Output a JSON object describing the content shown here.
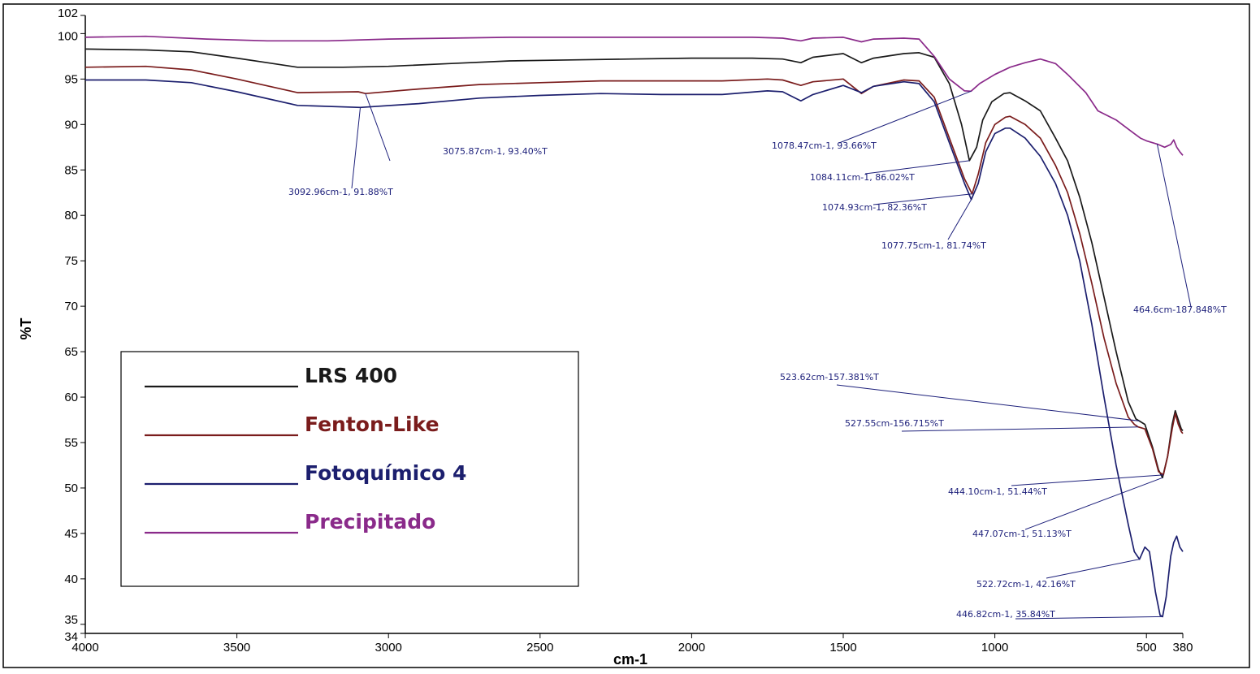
{
  "chart_data": {
    "type": "line",
    "xlabel": "cm-1",
    "ylabel": "%T",
    "xlim": [
      4000,
      380
    ],
    "ylim": [
      34,
      102
    ],
    "x_ticks": [
      4000,
      3500,
      3000,
      2500,
      2000,
      1500,
      1000,
      500,
      380
    ],
    "y_ticks": [
      34,
      35,
      40,
      45,
      50,
      55,
      60,
      65,
      70,
      75,
      80,
      85,
      90,
      95,
      100,
      102
    ],
    "grid": false,
    "legend_position": "lower-left",
    "series": [
      {
        "name": "LRS 400",
        "color": "#1a1a1a",
        "points": [
          [
            4000,
            98.3
          ],
          [
            3800,
            98.2
          ],
          [
            3650,
            98.0
          ],
          [
            3500,
            97.3
          ],
          [
            3400,
            96.8
          ],
          [
            3300,
            96.3
          ],
          [
            3150,
            96.3
          ],
          [
            3000,
            96.4
          ],
          [
            2800,
            96.7
          ],
          [
            2600,
            97.0
          ],
          [
            2400,
            97.1
          ],
          [
            2200,
            97.2
          ],
          [
            2000,
            97.3
          ],
          [
            1800,
            97.3
          ],
          [
            1700,
            97.2
          ],
          [
            1640,
            96.8
          ],
          [
            1600,
            97.4
          ],
          [
            1500,
            97.8
          ],
          [
            1440,
            96.8
          ],
          [
            1400,
            97.3
          ],
          [
            1300,
            97.8
          ],
          [
            1250,
            97.9
          ],
          [
            1200,
            97.4
          ],
          [
            1150,
            94.5
          ],
          [
            1110,
            90.0
          ],
          [
            1084,
            86.02
          ],
          [
            1060,
            87.5
          ],
          [
            1040,
            90.5
          ],
          [
            1010,
            92.5
          ],
          [
            970,
            93.4
          ],
          [
            950,
            93.5
          ],
          [
            900,
            92.6
          ],
          [
            850,
            91.5
          ],
          [
            800,
            88.5
          ],
          [
            760,
            86.0
          ],
          [
            720,
            82.0
          ],
          [
            680,
            77.0
          ],
          [
            640,
            71.0
          ],
          [
            600,
            65.0
          ],
          [
            560,
            59.5
          ],
          [
            535,
            57.6
          ],
          [
            523.62,
            57.38
          ],
          [
            505,
            57.0
          ],
          [
            480,
            54.5
          ],
          [
            460,
            52.0
          ],
          [
            447.07,
            51.13
          ],
          [
            430,
            53.5
          ],
          [
            415,
            57.0
          ],
          [
            405,
            58.5
          ],
          [
            395,
            57.5
          ],
          [
            385,
            56.5
          ],
          [
            380,
            56.3
          ]
        ]
      },
      {
        "name": "Fenton-Like",
        "color": "#7a1c1c",
        "points": [
          [
            4000,
            96.3
          ],
          [
            3800,
            96.4
          ],
          [
            3650,
            96.0
          ],
          [
            3500,
            95.0
          ],
          [
            3300,
            93.5
          ],
          [
            3100,
            93.6
          ],
          [
            3075.87,
            93.4
          ],
          [
            2900,
            93.9
          ],
          [
            2700,
            94.4
          ],
          [
            2500,
            94.6
          ],
          [
            2300,
            94.8
          ],
          [
            2100,
            94.8
          ],
          [
            1900,
            94.8
          ],
          [
            1750,
            95.0
          ],
          [
            1700,
            94.9
          ],
          [
            1640,
            94.3
          ],
          [
            1600,
            94.7
          ],
          [
            1500,
            95.0
          ],
          [
            1440,
            93.4
          ],
          [
            1400,
            94.2
          ],
          [
            1300,
            94.9
          ],
          [
            1250,
            94.8
          ],
          [
            1200,
            93.0
          ],
          [
            1150,
            88.5
          ],
          [
            1100,
            84.0
          ],
          [
            1074.93,
            82.36
          ],
          [
            1055,
            84.5
          ],
          [
            1030,
            88.0
          ],
          [
            1000,
            90.0
          ],
          [
            965,
            90.8
          ],
          [
            950,
            90.9
          ],
          [
            900,
            90.0
          ],
          [
            850,
            88.5
          ],
          [
            800,
            85.5
          ],
          [
            760,
            82.5
          ],
          [
            720,
            78.0
          ],
          [
            680,
            72.5
          ],
          [
            640,
            66.5
          ],
          [
            600,
            61.5
          ],
          [
            560,
            57.8
          ],
          [
            540,
            57.0
          ],
          [
            527.55,
            56.72
          ],
          [
            505,
            56.5
          ],
          [
            480,
            54.3
          ],
          [
            460,
            51.8
          ],
          [
            444.1,
            51.44
          ],
          [
            430,
            53.5
          ],
          [
            415,
            56.5
          ],
          [
            405,
            58.2
          ],
          [
            395,
            57.0
          ],
          [
            385,
            56.2
          ],
          [
            380,
            56.0
          ]
        ]
      },
      {
        "name": "Fotoquímico 4",
        "color": "#1c1f6e",
        "points": [
          [
            4000,
            94.9
          ],
          [
            3800,
            94.9
          ],
          [
            3650,
            94.6
          ],
          [
            3500,
            93.6
          ],
          [
            3300,
            92.1
          ],
          [
            3092.96,
            91.88
          ],
          [
            2900,
            92.3
          ],
          [
            2700,
            92.9
          ],
          [
            2500,
            93.2
          ],
          [
            2300,
            93.4
          ],
          [
            2100,
            93.3
          ],
          [
            1900,
            93.3
          ],
          [
            1750,
            93.7
          ],
          [
            1700,
            93.6
          ],
          [
            1640,
            92.6
          ],
          [
            1600,
            93.3
          ],
          [
            1500,
            94.3
          ],
          [
            1440,
            93.5
          ],
          [
            1400,
            94.2
          ],
          [
            1300,
            94.7
          ],
          [
            1250,
            94.5
          ],
          [
            1200,
            92.5
          ],
          [
            1150,
            88.0
          ],
          [
            1100,
            83.5
          ],
          [
            1077.75,
            81.74
          ],
          [
            1055,
            83.5
          ],
          [
            1030,
            87.0
          ],
          [
            1000,
            89.0
          ],
          [
            965,
            89.6
          ],
          [
            950,
            89.6
          ],
          [
            900,
            88.5
          ],
          [
            850,
            86.5
          ],
          [
            800,
            83.5
          ],
          [
            760,
            80.0
          ],
          [
            720,
            75.0
          ],
          [
            680,
            68.0
          ],
          [
            640,
            60.0
          ],
          [
            600,
            52.5
          ],
          [
            560,
            46.0
          ],
          [
            540,
            43.0
          ],
          [
            522.72,
            42.16
          ],
          [
            505,
            43.5
          ],
          [
            490,
            43.0
          ],
          [
            470,
            38.5
          ],
          [
            455,
            36.0
          ],
          [
            446.82,
            35.84
          ],
          [
            435,
            38.0
          ],
          [
            420,
            42.5
          ],
          [
            410,
            44.0
          ],
          [
            400,
            44.7
          ],
          [
            390,
            43.5
          ],
          [
            380,
            43.0
          ]
        ]
      },
      {
        "name": "Precipitado",
        "color": "#8a2a8a",
        "points": [
          [
            4000,
            99.6
          ],
          [
            3800,
            99.7
          ],
          [
            3600,
            99.4
          ],
          [
            3400,
            99.2
          ],
          [
            3200,
            99.2
          ],
          [
            3000,
            99.4
          ],
          [
            2800,
            99.5
          ],
          [
            2600,
            99.6
          ],
          [
            2400,
            99.6
          ],
          [
            2200,
            99.6
          ],
          [
            2000,
            99.6
          ],
          [
            1800,
            99.6
          ],
          [
            1700,
            99.5
          ],
          [
            1640,
            99.2
          ],
          [
            1600,
            99.5
          ],
          [
            1500,
            99.6
          ],
          [
            1440,
            99.1
          ],
          [
            1400,
            99.4
          ],
          [
            1300,
            99.5
          ],
          [
            1250,
            99.4
          ],
          [
            1200,
            97.5
          ],
          [
            1150,
            95.0
          ],
          [
            1100,
            93.7
          ],
          [
            1078.47,
            93.66
          ],
          [
            1050,
            94.5
          ],
          [
            1000,
            95.5
          ],
          [
            950,
            96.3
          ],
          [
            900,
            96.8
          ],
          [
            850,
            97.2
          ],
          [
            800,
            96.7
          ],
          [
            760,
            95.5
          ],
          [
            700,
            93.5
          ],
          [
            660,
            91.5
          ],
          [
            600,
            90.5
          ],
          [
            560,
            89.5
          ],
          [
            520,
            88.5
          ],
          [
            500,
            88.2
          ],
          [
            464.6,
            87.848
          ],
          [
            440,
            87.5
          ],
          [
            420,
            87.8
          ],
          [
            410,
            88.3
          ],
          [
            400,
            87.5
          ],
          [
            390,
            87.0
          ],
          [
            380,
            86.6
          ]
        ]
      }
    ],
    "annotations": [
      {
        "text": "3075.87cm-1, 93.40%T",
        "x": 3075.87,
        "y": 93.4
      },
      {
        "text": "3092.96cm-1, 91.88%T",
        "x": 3092.96,
        "y": 91.88
      },
      {
        "text": "1078.47cm-1, 93.66%T",
        "x": 1078.47,
        "y": 93.66
      },
      {
        "text": "1084.11cm-1, 86.02%T",
        "x": 1084.11,
        "y": 86.02
      },
      {
        "text": "1074.93cm-1, 82.36%T",
        "x": 1074.93,
        "y": 82.36
      },
      {
        "text": "1077.75cm-1, 81.74%T",
        "x": 1077.75,
        "y": 81.74
      },
      {
        "text": "464.6cm-187.848%T",
        "x": 464.6,
        "y": 87.848
      },
      {
        "text": "523.62cm-157.381%T",
        "x": 523.62,
        "y": 57.381
      },
      {
        "text": "527.55cm-156.715%T",
        "x": 527.55,
        "y": 56.715
      },
      {
        "text": "444.10cm-1, 51.44%T",
        "x": 444.1,
        "y": 51.44
      },
      {
        "text": "447.07cm-1, 51.13%T",
        "x": 447.07,
        "y": 51.13
      },
      {
        "text": "522.72cm-1, 42.16%T",
        "x": 522.72,
        "y": 42.16
      },
      {
        "text": "446.82cm-1, 35.84%T",
        "x": 446.82,
        "y": 35.84
      }
    ]
  }
}
